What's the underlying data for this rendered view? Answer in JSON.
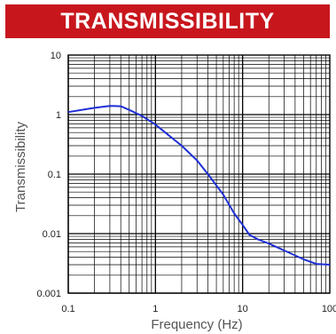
{
  "banner": {
    "title": "TRANSMISSIBILITY",
    "color": "#c8161d"
  },
  "chart_data": {
    "type": "line",
    "title": "TRANSMISSIBILITY",
    "xlabel": "Frequency (Hz)",
    "ylabel": "Transmissibility",
    "xscale": "log",
    "yscale": "log",
    "xlim": [
      0.1,
      100
    ],
    "ylim": [
      0.001,
      10
    ],
    "x_ticks": [
      "0.1",
      "1",
      "10",
      "100"
    ],
    "y_ticks": [
      "0.001",
      "0.01",
      "0.1",
      "1",
      "10"
    ],
    "grid": true,
    "series": [
      {
        "color": "#1f2fd6",
        "x": [
          0.1,
          0.2,
          0.3,
          0.4,
          0.5,
          0.7,
          1.0,
          1.5,
          2.0,
          3.0,
          4.0,
          6.0,
          8.0,
          10.0,
          12.0,
          15.0,
          20.0,
          30.0,
          50.0,
          70.0,
          100.0
        ],
        "y": [
          1.1,
          1.3,
          1.4,
          1.38,
          1.2,
          0.95,
          0.68,
          0.42,
          0.3,
          0.17,
          0.1,
          0.045,
          0.022,
          0.014,
          0.0095,
          0.008,
          0.0068,
          0.0052,
          0.0037,
          0.0031,
          0.003
        ]
      }
    ]
  }
}
